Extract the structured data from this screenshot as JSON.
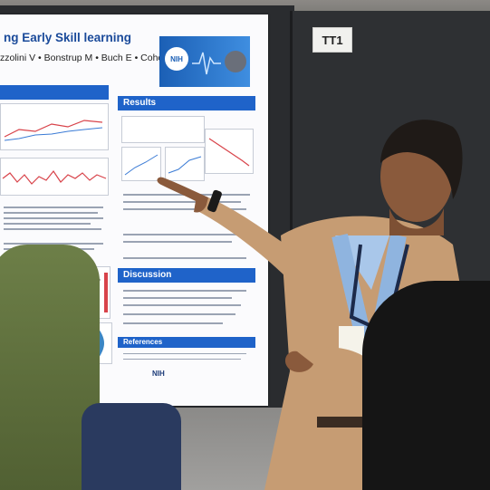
{
  "booth_label": "TT1",
  "poster": {
    "title": "ng Early Skill learning",
    "authors": "zzolini V  •  Bonstrup M  •  Buch E  •  Cohen LG",
    "banner_text": "NIH",
    "sections": {
      "results": "Results",
      "discussion": "Discussion",
      "references": "References"
    },
    "footer_logo": "NIH"
  },
  "colors": {
    "poster_blue": "#1f63c9",
    "panel_dark": "#2e3033",
    "jacket_tan": "#c8a07a"
  }
}
